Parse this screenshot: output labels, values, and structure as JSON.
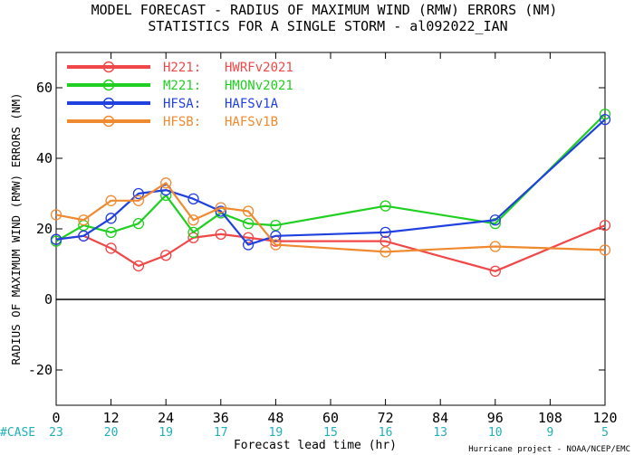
{
  "chart_data": {
    "type": "line",
    "title": "MODEL FORECAST - RADIUS OF MAXIMUM WIND (RMW) ERRORS (NM)",
    "subtitle": "STATISTICS FOR A SINGLE STORM - al092022_IAN",
    "xlabel": "Forecast lead time (hr)",
    "ylabel": "RADIUS OF MAXIMUM WIND (RMW) ERRORS (NM)",
    "xlim": [
      0,
      120
    ],
    "ylim": [
      -30,
      70
    ],
    "x_ticks": [
      "0",
      "12",
      "24",
      "36",
      "48",
      "60",
      "72",
      "84",
      "96",
      "108",
      "120"
    ],
    "y_ticks": [
      "-20",
      "0",
      "20",
      "40",
      "60"
    ],
    "grid": false,
    "legend_position": "top-left",
    "case_label": "#CASE",
    "case_counts": [
      "23",
      "20",
      "19",
      "17",
      "19",
      "15",
      "16",
      "13",
      "10",
      "9",
      "5"
    ],
    "credit": "Hurricane project - NOAA/NCEP/EMC",
    "series": [
      {
        "name": "H221:",
        "label": "HWRFv2021",
        "color": "#f04848",
        "x": [
          0,
          6,
          12,
          18,
          24,
          30,
          36,
          42,
          48,
          72,
          96,
          120
        ],
        "y": [
          17,
          18,
          14.5,
          9.5,
          12.5,
          17.5,
          18.5,
          17.5,
          16.5,
          16.5,
          8,
          21
        ]
      },
      {
        "name": "M221:",
        "label": "HMONv2021",
        "color": "#20d020",
        "x": [
          0,
          6,
          12,
          18,
          24,
          30,
          36,
          42,
          48,
          72,
          96,
          120
        ],
        "y": [
          16.5,
          21,
          19,
          21.5,
          29.5,
          19,
          24.5,
          21.5,
          21,
          26.5,
          21.5,
          52.5
        ]
      },
      {
        "name": "HFSA:",
        "label": "HAFSv1A",
        "color": "#2040e0",
        "x": [
          0,
          6,
          12,
          18,
          24,
          30,
          36,
          42,
          48,
          72,
          96,
          120
        ],
        "y": [
          17,
          18,
          23,
          30,
          31,
          28.5,
          25,
          15.5,
          18,
          19,
          22.5,
          51
        ]
      },
      {
        "name": "HFSB:",
        "label": "HAFSv1B",
        "color": "#f08a30",
        "x": [
          0,
          6,
          12,
          18,
          24,
          30,
          36,
          42,
          48,
          72,
          96,
          120
        ],
        "y": [
          24,
          22.5,
          28,
          28,
          33,
          22.5,
          26,
          25,
          15.5,
          13.5,
          15,
          14
        ]
      }
    ]
  }
}
